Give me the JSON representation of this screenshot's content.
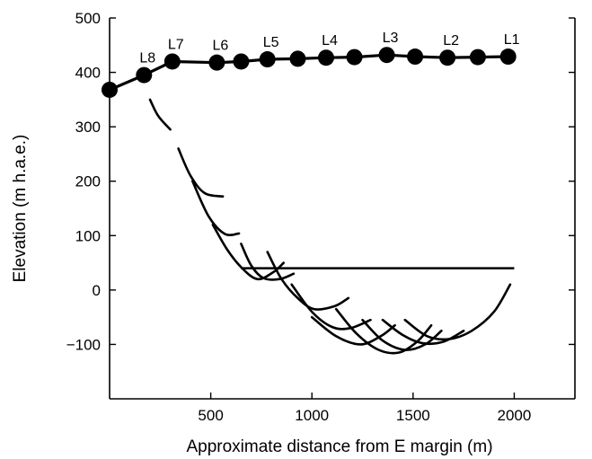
{
  "chart_data": {
    "type": "line",
    "title": "",
    "xlabel": "Approximate distance from E margin (m)",
    "ylabel": "Elevation (m h.a.e.)",
    "xlim": [
      0,
      2300
    ],
    "ylim": [
      -200,
      500
    ],
    "x_ticks": [
      500,
      1000,
      1500,
      2000
    ],
    "y_ticks": [
      -100,
      0,
      100,
      200,
      300,
      400,
      500
    ],
    "x_tick_labels": [
      "500",
      "1000",
      "1500",
      "2000"
    ],
    "y_tick_labels": [
      "−100",
      "0",
      "100",
      "200",
      "300",
      "400",
      "500"
    ],
    "grid": false,
    "colors": {
      "line": "#000000",
      "axis": "#000000"
    },
    "surface_profile": {
      "points": [
        {
          "x": 0,
          "y": 368
        },
        {
          "x": 170,
          "y": 395
        },
        {
          "x": 310,
          "y": 420
        },
        {
          "x": 530,
          "y": 418
        },
        {
          "x": 650,
          "y": 420
        },
        {
          "x": 780,
          "y": 424
        },
        {
          "x": 930,
          "y": 425
        },
        {
          "x": 1070,
          "y": 427
        },
        {
          "x": 1210,
          "y": 428
        },
        {
          "x": 1370,
          "y": 432
        },
        {
          "x": 1510,
          "y": 429
        },
        {
          "x": 1670,
          "y": 427
        },
        {
          "x": 1820,
          "y": 428
        },
        {
          "x": 1970,
          "y": 429
        }
      ],
      "labels": [
        {
          "text": "L1",
          "x": 1970
        },
        {
          "text": "L2",
          "x": 1670
        },
        {
          "text": "L3",
          "x": 1370
        },
        {
          "text": "L4",
          "x": 1070
        },
        {
          "text": "L5",
          "x": 780
        },
        {
          "text": "L6",
          "x": 530
        },
        {
          "text": "L7",
          "x": 310
        },
        {
          "text": "L8",
          "x": 170
        }
      ]
    },
    "horizontal_line": {
      "x1": 650,
      "x2": 2000,
      "y": 40
    },
    "failure_surfaces": [
      [
        [
          200,
          350
        ],
        [
          240,
          320
        ],
        [
          300,
          295
        ]
      ],
      [
        [
          340,
          260
        ],
        [
          400,
          210
        ],
        [
          470,
          178
        ],
        [
          560,
          172
        ]
      ],
      [
        [
          410,
          200
        ],
        [
          490,
          135
        ],
        [
          570,
          103
        ],
        [
          640,
          104
        ]
      ],
      [
        [
          510,
          120
        ],
        [
          580,
          75
        ],
        [
          650,
          42
        ],
        [
          730,
          20
        ],
        [
          810,
          33
        ],
        [
          860,
          50
        ]
      ],
      [
        [
          650,
          85
        ],
        [
          700,
          45
        ],
        [
          760,
          22
        ],
        [
          840,
          20
        ],
        [
          910,
          30
        ]
      ],
      [
        [
          780,
          70
        ],
        [
          850,
          20
        ],
        [
          930,
          -15
        ],
        [
          1010,
          -35
        ],
        [
          1110,
          -30
        ],
        [
          1180,
          -15
        ]
      ],
      [
        [
          900,
          10
        ],
        [
          1000,
          -40
        ],
        [
          1100,
          -68
        ],
        [
          1190,
          -70
        ],
        [
          1290,
          -55
        ]
      ],
      [
        [
          1000,
          -50
        ],
        [
          1120,
          -85
        ],
        [
          1240,
          -100
        ],
        [
          1340,
          -85
        ],
        [
          1410,
          -65
        ]
      ],
      [
        [
          1120,
          -35
        ],
        [
          1220,
          -80
        ],
        [
          1330,
          -110
        ],
        [
          1430,
          -115
        ],
        [
          1520,
          -95
        ],
        [
          1590,
          -65
        ]
      ],
      [
        [
          1250,
          -55
        ],
        [
          1350,
          -93
        ],
        [
          1460,
          -110
        ],
        [
          1560,
          -100
        ],
        [
          1640,
          -75
        ]
      ],
      [
        [
          1350,
          -55
        ],
        [
          1450,
          -83
        ],
        [
          1550,
          -98
        ],
        [
          1650,
          -95
        ],
        [
          1750,
          -75
        ]
      ],
      [
        [
          1460,
          -55
        ],
        [
          1570,
          -85
        ],
        [
          1680,
          -90
        ],
        [
          1790,
          -75
        ],
        [
          1900,
          -40
        ],
        [
          1980,
          10
        ]
      ]
    ]
  }
}
